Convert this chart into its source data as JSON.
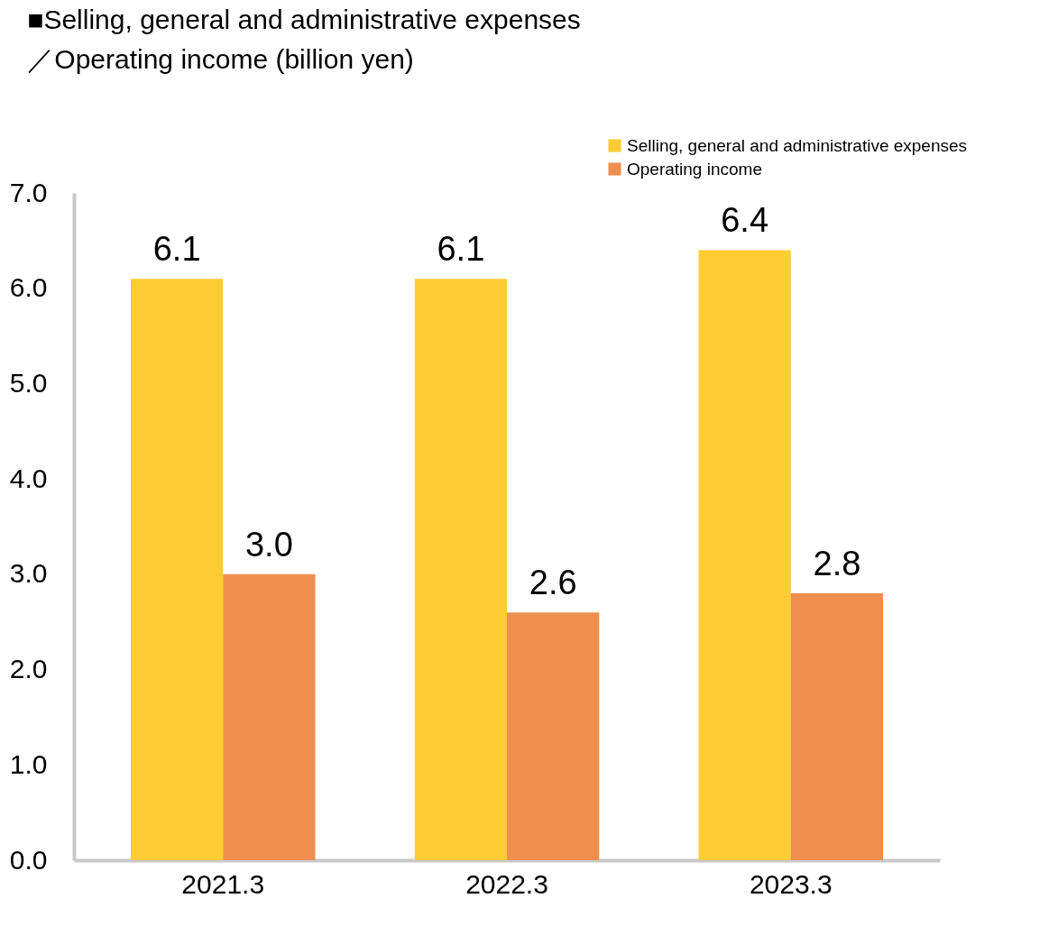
{
  "chart_data": {
    "type": "bar",
    "title": "■Selling, general and administrative expenses",
    "subtitle": "／Operating income (billion yen)",
    "categories": [
      "2021.3",
      "2022.3",
      "2023.3"
    ],
    "series": [
      {
        "name": "Selling, general and administrative expenses",
        "color": "#ffcc33",
        "values": [
          6.1,
          6.1,
          6.4
        ],
        "value_labels": [
          "6.1",
          "6.1",
          "6.4"
        ]
      },
      {
        "name": "Operating income",
        "color": "#ef8f4f",
        "values": [
          3.0,
          2.6,
          2.8
        ],
        "value_labels": [
          "3.0",
          "2.6",
          "2.8"
        ]
      }
    ],
    "ylim": [
      0,
      7
    ],
    "yticks": [
      {
        "value": 0,
        "label": "0.0"
      },
      {
        "value": 1,
        "label": "1.0"
      },
      {
        "value": 2,
        "label": "2.0"
      },
      {
        "value": 3,
        "label": "3.0"
      },
      {
        "value": 4,
        "label": "4.0"
      },
      {
        "value": 5,
        "label": "5.0"
      },
      {
        "value": 6,
        "label": "6.0"
      },
      {
        "value": 7,
        "label": "7.0"
      }
    ],
    "legend": "top right",
    "grid": false
  }
}
